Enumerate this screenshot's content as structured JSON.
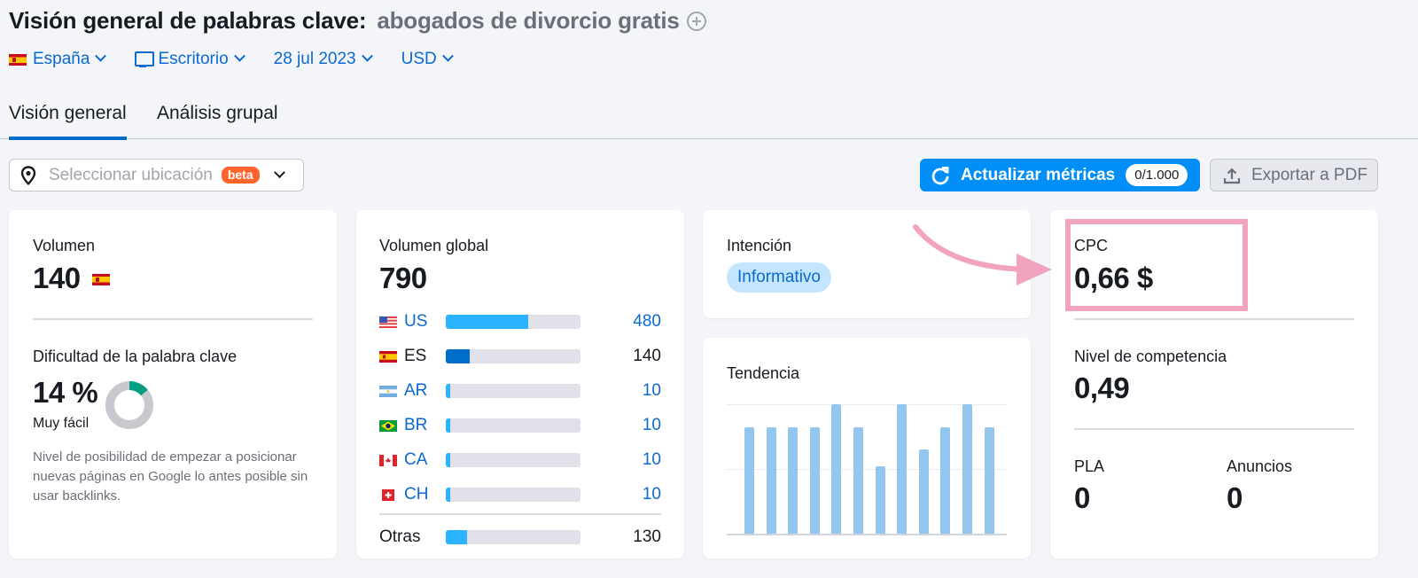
{
  "header": {
    "title": "Visión general de palabras clave:",
    "keyword": "abogados de divorcio gratis"
  },
  "filters": {
    "country": "España",
    "device": "Escritorio",
    "date": "28 jul 2023",
    "currency": "USD"
  },
  "tabs": [
    {
      "label": "Visión general",
      "active": true
    },
    {
      "label": "Análisis grupal",
      "active": false
    }
  ],
  "location_select": {
    "placeholder": "Seleccionar ubicación",
    "badge": "beta"
  },
  "actions": {
    "update_label": "Actualizar métricas",
    "update_count": "0/1.000",
    "export_label": "Exportar a PDF"
  },
  "volume_card": {
    "label": "Volumen",
    "value": "140",
    "kd_label": "Dificultad de la palabra clave",
    "kd_value": "14 %",
    "kd_percent": 14,
    "kd_level": "Muy fácil",
    "kd_description": "Nivel de posibilidad de empezar a posicionar nuevas páginas en Google lo antes posible sin usar backlinks.",
    "kd_color": "#009f81"
  },
  "global_volume_card": {
    "label": "Volumen global",
    "value": "790",
    "countries": [
      {
        "code": "US",
        "value": "480",
        "fill_pct": 61,
        "link": true
      },
      {
        "code": "ES",
        "value": "140",
        "fill_pct": 18,
        "link": false
      },
      {
        "code": "AR",
        "value": "10",
        "fill_pct": 3,
        "link": true
      },
      {
        "code": "BR",
        "value": "10",
        "fill_pct": 3,
        "link": true
      },
      {
        "code": "CA",
        "value": "10",
        "fill_pct": 3,
        "link": true
      },
      {
        "code": "CH",
        "value": "10",
        "fill_pct": 3,
        "link": true
      }
    ],
    "other": {
      "label": "Otras",
      "value": "130",
      "fill_pct": 16
    }
  },
  "intent_card": {
    "label": "Intención",
    "badge": "Informativo"
  },
  "trend_card": {
    "label": "Tendencia",
    "bars": [
      0.82,
      0.82,
      0.82,
      0.82,
      1.0,
      0.82,
      0.52,
      1.0,
      0.65,
      0.82,
      1.0,
      0.82
    ]
  },
  "metrics_card": {
    "cpc_label": "CPC",
    "cpc_value": "0,66 $",
    "competition_label": "Nivel de competencia",
    "competition_value": "0,49",
    "pla_label": "PLA",
    "pla_value": "0",
    "ads_label": "Anuncios",
    "ads_value": "0"
  },
  "colors": {
    "accent": "#008ff8",
    "link": "#0a6ad1",
    "beta": "#ff642d",
    "highlight": "#f2a3c0",
    "bar_primary": "#2bb3ff",
    "bar_es": "#006dca",
    "trend_bar": "#93c7f0"
  }
}
